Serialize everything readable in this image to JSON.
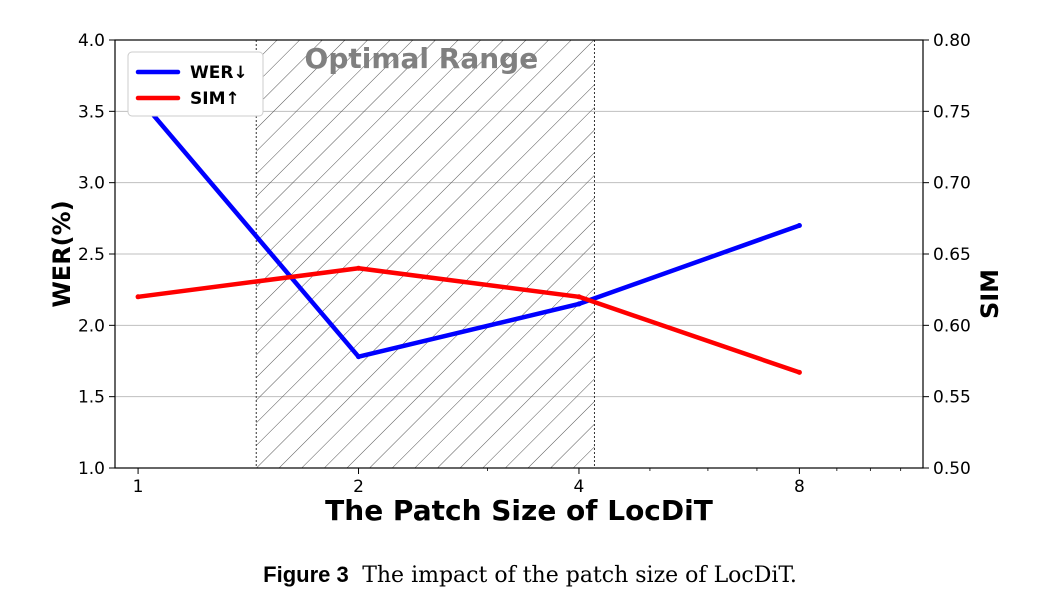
{
  "chart_data": {
    "type": "line",
    "x": [
      1,
      2,
      4,
      8
    ],
    "x_scale": "log2",
    "xlim": [
      0.93,
      11.8
    ],
    "xlabel": "The Patch Size of LocDiT",
    "xticks": [
      "1",
      "2",
      "4",
      "8"
    ],
    "series": [
      {
        "name": "WER↓",
        "axis": "left",
        "color": "#0000ff",
        "values": [
          3.6,
          1.78,
          2.15,
          2.7
        ]
      },
      {
        "name": "SIM↑",
        "axis": "right",
        "color": "#ff0000",
        "values": [
          0.62,
          0.64,
          0.62,
          0.567
        ]
      }
    ],
    "left_axis": {
      "label": "WER(%)",
      "ylim": [
        1.0,
        4.0
      ],
      "ticks": [
        "1.0",
        "1.5",
        "2.0",
        "2.5",
        "3.0",
        "3.5",
        "4.0"
      ]
    },
    "right_axis": {
      "label": "SIM",
      "ylim": [
        0.5,
        0.8
      ],
      "ticks": [
        "0.50",
        "0.55",
        "0.60",
        "0.65",
        "0.70",
        "0.75",
        "0.80"
      ]
    },
    "shaded_region": {
      "label": "Optimal Range",
      "x_range": [
        1.45,
        4.2
      ],
      "pattern": "hatched"
    },
    "grid": true,
    "legend_position": "top-left"
  },
  "caption": {
    "label": "Figure 3",
    "text": "The impact of the patch size of LocDiT."
  }
}
